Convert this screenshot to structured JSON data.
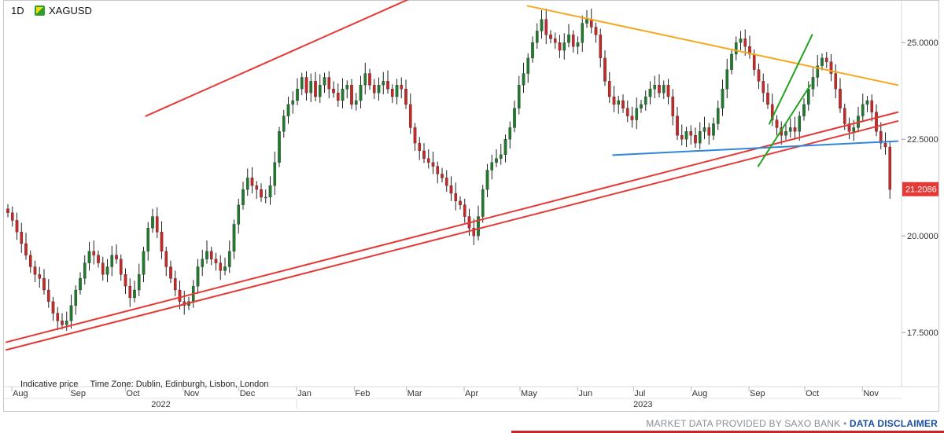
{
  "header": {
    "timeframe": "1D",
    "symbol": "XAGUSD",
    "symbol_color": "#2e9e2e"
  },
  "info": {
    "indicative": "Indicative price",
    "timezone": "Time Zone: Dublin, Edinburgh, Lisbon, London"
  },
  "footer": {
    "provider": "MARKET DATA PROVIDED BY SAXO BANK",
    "separator": "•",
    "disclaimer": "DATA DISCLAIMER"
  },
  "chart_data": {
    "type": "candlestick",
    "instrument": "XAGUSD",
    "interval": "1D",
    "last_price": "21.2086",
    "y_ticks": [
      "25.0000",
      "22.5000",
      "20.0000",
      "17.5000"
    ],
    "ylim": [
      16.1,
      26.0
    ],
    "month_labels": [
      "Aug",
      "Sep",
      "Oct",
      "Nov",
      "Dec",
      "Jan",
      "Feb",
      "Mar",
      "Apr",
      "May",
      "Jun",
      "Jul",
      "Aug",
      "Sep",
      "Oct",
      "Nov"
    ],
    "year_labels": [
      "2022",
      "2023"
    ],
    "colors": {
      "up": "#1f7a2e",
      "down": "#c62828",
      "wick": "#222222",
      "price_label": "#e53935"
    },
    "trendlines": [
      {
        "name": "upper-channel",
        "color": "#e53935",
        "from": [
          "2022-10-12",
          23.1
        ],
        "to": [
          "2023-05-08",
          27.55
        ]
      },
      {
        "name": "lower-channel-1",
        "color": "#e53935",
        "from": [
          "2022-07-29",
          17.25
        ],
        "to": [
          "2023-11-20",
          23.2
        ]
      },
      {
        "name": "lower-channel-2",
        "color": "#e53935",
        "from": [
          "2022-07-29",
          17.05
        ],
        "to": [
          "2023-11-20",
          22.97
        ]
      },
      {
        "name": "descending-resistance",
        "color": "#f4a81d",
        "from": [
          "2023-05-05",
          25.95
        ],
        "to": [
          "2023-11-20",
          23.9
        ]
      },
      {
        "name": "horizontal-support",
        "color": "#2e86de",
        "from": [
          "2023-06-20",
          22.09
        ],
        "to": [
          "2023-11-20",
          22.45
        ]
      },
      {
        "name": "green-channel-upper",
        "color": "#21a321",
        "from": [
          "2023-09-12",
          22.9
        ],
        "to": [
          "2023-10-05",
          25.2
        ]
      },
      {
        "name": "green-channel-lower",
        "color": "#21a321",
        "from": [
          "2023-09-06",
          21.8
        ],
        "to": [
          "2023-10-04",
          23.9
        ]
      }
    ],
    "closes": [
      20.6,
      20.4,
      20.1,
      19.8,
      19.5,
      19.2,
      19.0,
      18.9,
      18.6,
      18.3,
      18.0,
      17.8,
      17.7,
      17.8,
      18.2,
      18.6,
      18.9,
      19.3,
      19.6,
      19.5,
      19.3,
      19.0,
      19.2,
      19.5,
      19.4,
      19.0,
      18.7,
      18.4,
      18.6,
      19.0,
      19.6,
      20.2,
      20.5,
      20.1,
      19.6,
      19.2,
      18.9,
      18.6,
      18.3,
      18.2,
      18.3,
      18.7,
      19.2,
      19.4,
      19.6,
      19.4,
      19.3,
      19.1,
      19.2,
      19.6,
      20.3,
      20.8,
      21.2,
      21.5,
      21.3,
      21.2,
      21.0,
      21.0,
      21.3,
      21.9,
      22.7,
      23.1,
      23.4,
      23.5,
      23.8,
      24.1,
      23.7,
      24.0,
      23.6,
      23.9,
      24.1,
      23.8,
      23.7,
      23.5,
      23.8,
      23.9,
      23.4,
      23.5,
      23.9,
      24.2,
      23.9,
      23.7,
      23.9,
      24.0,
      23.8,
      23.6,
      23.9,
      23.8,
      23.4,
      22.8,
      22.4,
      22.2,
      22.0,
      21.9,
      21.8,
      21.6,
      21.5,
      21.3,
      21.1,
      20.9,
      20.8,
      20.5,
      20.2,
      20.0,
      20.5,
      21.2,
      21.7,
      21.9,
      22.0,
      22.1,
      22.5,
      22.8,
      23.3,
      23.9,
      24.2,
      24.6,
      25.0,
      25.3,
      25.6,
      25.2,
      25.1,
      25.0,
      24.8,
      25.0,
      25.2,
      24.9,
      25.0,
      25.5,
      25.6,
      25.4,
      25.2,
      24.6,
      24.0,
      23.6,
      23.4,
      23.5,
      23.3,
      23.1,
      23.0,
      23.3,
      23.4,
      23.6,
      23.8,
      23.9,
      23.7,
      23.9,
      23.6,
      23.1,
      22.6,
      22.5,
      22.7,
      22.6,
      22.4,
      22.7,
      22.8,
      22.6,
      22.9,
      23.3,
      23.8,
      24.3,
      24.7,
      25.0,
      25.1,
      24.9,
      24.7,
      24.3,
      24.0,
      23.7,
      23.4,
      23.0,
      22.8,
      22.6,
      22.7,
      22.8,
      22.7,
      23.1,
      23.4,
      23.8,
      24.1,
      24.4,
      24.6,
      24.5,
      24.2,
      23.8,
      23.3,
      22.9,
      22.7,
      22.8,
      23.1,
      23.4,
      23.5,
      23.2,
      22.7,
      22.4,
      22.3,
      21.2
    ]
  }
}
